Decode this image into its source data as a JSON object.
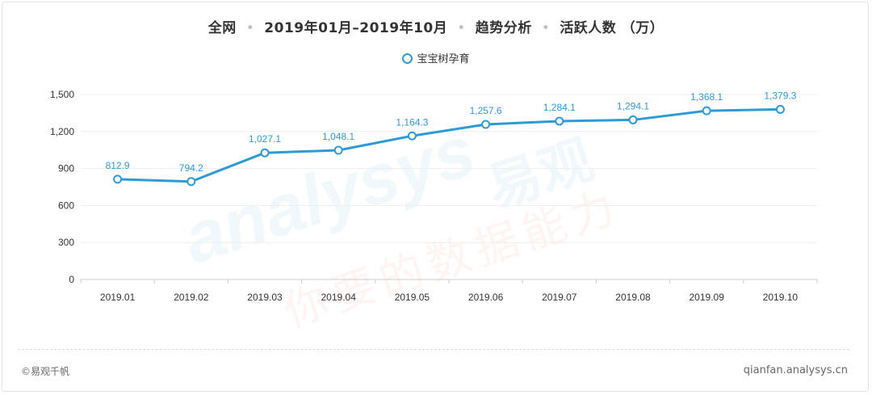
{
  "header": {
    "title_parts": [
      "全网",
      "2019年01月–2019年10月",
      "趋势分析",
      "活跃人数 （万）"
    ]
  },
  "legend": {
    "label": "宝宝树孕育"
  },
  "watermark": {
    "text_en": "analysys",
    "text_cn_brand": "易观",
    "text_cn_slogan": "你要的数据能力"
  },
  "footer": {
    "left": "©易观千帆",
    "right": "qianfan.analysys.cn"
  },
  "colors": {
    "series": "#2e9bd6",
    "label": "#2e9bd6",
    "axis": "#333333",
    "grid": "#eeeeee"
  },
  "chart_data": {
    "type": "line",
    "categories": [
      "2019.01",
      "2019.02",
      "2019.03",
      "2019.04",
      "2019.05",
      "2019.06",
      "2019.07",
      "2019.08",
      "2019.09",
      "2019.10"
    ],
    "series": [
      {
        "name": "宝宝树孕育",
        "values": [
          812.9,
          794.2,
          1027.1,
          1048.1,
          1164.3,
          1257.6,
          1284.1,
          1294.1,
          1368.1,
          1379.3
        ]
      }
    ],
    "value_labels": [
      "812.9",
      "794.2",
      "1,027.1",
      "1,048.1",
      "1,164.3",
      "1,257.6",
      "1,284.1",
      "1,294.1",
      "1,368.1",
      "1,379.3"
    ],
    "yticks": [
      "0",
      "300",
      "600",
      "900",
      "1,200",
      "1,500"
    ],
    "ytick_values": [
      0,
      300,
      600,
      900,
      1200,
      1500
    ],
    "ylim": [
      0,
      1500
    ],
    "grid": true,
    "legend_position": "top-center"
  }
}
